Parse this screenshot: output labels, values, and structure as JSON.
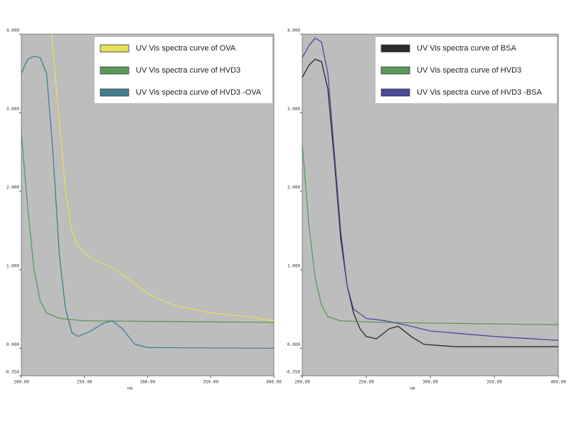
{
  "chart_data": [
    {
      "type": "line",
      "x_label": "nm",
      "background": "#bdbdbd",
      "legend": "upper right",
      "xlim": [
        200,
        400
      ],
      "ylim": [
        -0.35,
        4.0
      ],
      "xticks": [
        {
          "value": 200,
          "label": "200.00"
        },
        {
          "value": 250,
          "label": "250.00"
        },
        {
          "value": 300,
          "label": "300.00"
        },
        {
          "value": 350,
          "label": "350.00"
        },
        {
          "value": 400,
          "label": "400.00"
        }
      ],
      "yticks": [
        {
          "value": -0.35,
          "label": "-0.350"
        },
        {
          "value": 0,
          "label": "0.000"
        },
        {
          "value": 1,
          "label": "1.000"
        },
        {
          "value": 2,
          "label": "2.000"
        },
        {
          "value": 3,
          "label": "3.000"
        },
        {
          "value": 4,
          "label": "4.000"
        }
      ],
      "series": [
        {
          "name": "UV Vis spectra curve of OVA",
          "color": "#e6df5a",
          "x": [
            224,
            230,
            235,
            240,
            245,
            255,
            265,
            275,
            285,
            300,
            320,
            350,
            380,
            400
          ],
          "values": [
            4.0,
            2.9,
            2.0,
            1.5,
            1.3,
            1.15,
            1.08,
            1.0,
            0.88,
            0.7,
            0.55,
            0.45,
            0.4,
            0.35
          ]
        },
        {
          "name": "UV Vis spectra curve of HVD3",
          "color": "#5a9a5a",
          "x": [
            200,
            205,
            210,
            215,
            220,
            230,
            250,
            400
          ],
          "values": [
            2.75,
            1.8,
            1.0,
            0.6,
            0.45,
            0.38,
            0.35,
            0.33
          ]
        },
        {
          "name": "UV Vis spectra curve of  HVD3 -OVA",
          "color": "#3f7f8f",
          "x": [
            200,
            205,
            210,
            215,
            220,
            225,
            230,
            235,
            240,
            245,
            255,
            265,
            272,
            280,
            290,
            300,
            400
          ],
          "values": [
            3.5,
            3.68,
            3.72,
            3.7,
            3.5,
            2.5,
            1.2,
            0.5,
            0.2,
            0.15,
            0.22,
            0.32,
            0.35,
            0.25,
            0.05,
            0.01,
            0.0
          ]
        }
      ]
    },
    {
      "type": "line",
      "x_label": "nm",
      "background": "#bdbdbd",
      "legend": "upper right",
      "xlim": [
        200,
        400
      ],
      "ylim": [
        -0.35,
        4.0
      ],
      "xticks": [
        {
          "value": 200,
          "label": "200.00"
        },
        {
          "value": 250,
          "label": "250.00"
        },
        {
          "value": 300,
          "label": "300.00"
        },
        {
          "value": 350,
          "label": "350.00"
        },
        {
          "value": 400,
          "label": "400.00"
        }
      ],
      "yticks": [
        {
          "value": -0.35,
          "label": "-0.350"
        },
        {
          "value": 0,
          "label": "0.000"
        },
        {
          "value": 1,
          "label": "1.000"
        },
        {
          "value": 2,
          "label": "2.000"
        },
        {
          "value": 3,
          "label": "3.000"
        },
        {
          "value": 4,
          "label": "4.000"
        }
      ],
      "series": [
        {
          "name": "UV Vis spectra curve of BSA",
          "color": "#2a2a2a",
          "x": [
            200,
            205,
            210,
            215,
            220,
            225,
            230,
            235,
            240,
            245,
            250,
            258,
            268,
            275,
            285,
            295,
            320,
            400
          ],
          "values": [
            3.45,
            3.6,
            3.68,
            3.65,
            3.3,
            2.4,
            1.4,
            0.8,
            0.45,
            0.25,
            0.15,
            0.12,
            0.25,
            0.28,
            0.15,
            0.05,
            0.02,
            0.02
          ]
        },
        {
          "name": "UV Vis spectra curve of HVD3",
          "color": "#5a9a5a",
          "x": [
            200,
            205,
            210,
            215,
            220,
            230,
            260,
            400
          ],
          "values": [
            2.6,
            1.6,
            0.9,
            0.55,
            0.4,
            0.35,
            0.33,
            0.3
          ]
        },
        {
          "name": "UV Vis spectra curve of  HVD3 -BSA",
          "color": "#4a4a9a",
          "x": [
            200,
            205,
            210,
            215,
            220,
            225,
            230,
            235,
            240,
            250,
            265,
            280,
            300,
            350,
            400
          ],
          "values": [
            3.7,
            3.85,
            3.95,
            3.9,
            3.5,
            2.5,
            1.5,
            0.8,
            0.5,
            0.38,
            0.35,
            0.3,
            0.22,
            0.15,
            0.1
          ]
        }
      ]
    }
  ]
}
